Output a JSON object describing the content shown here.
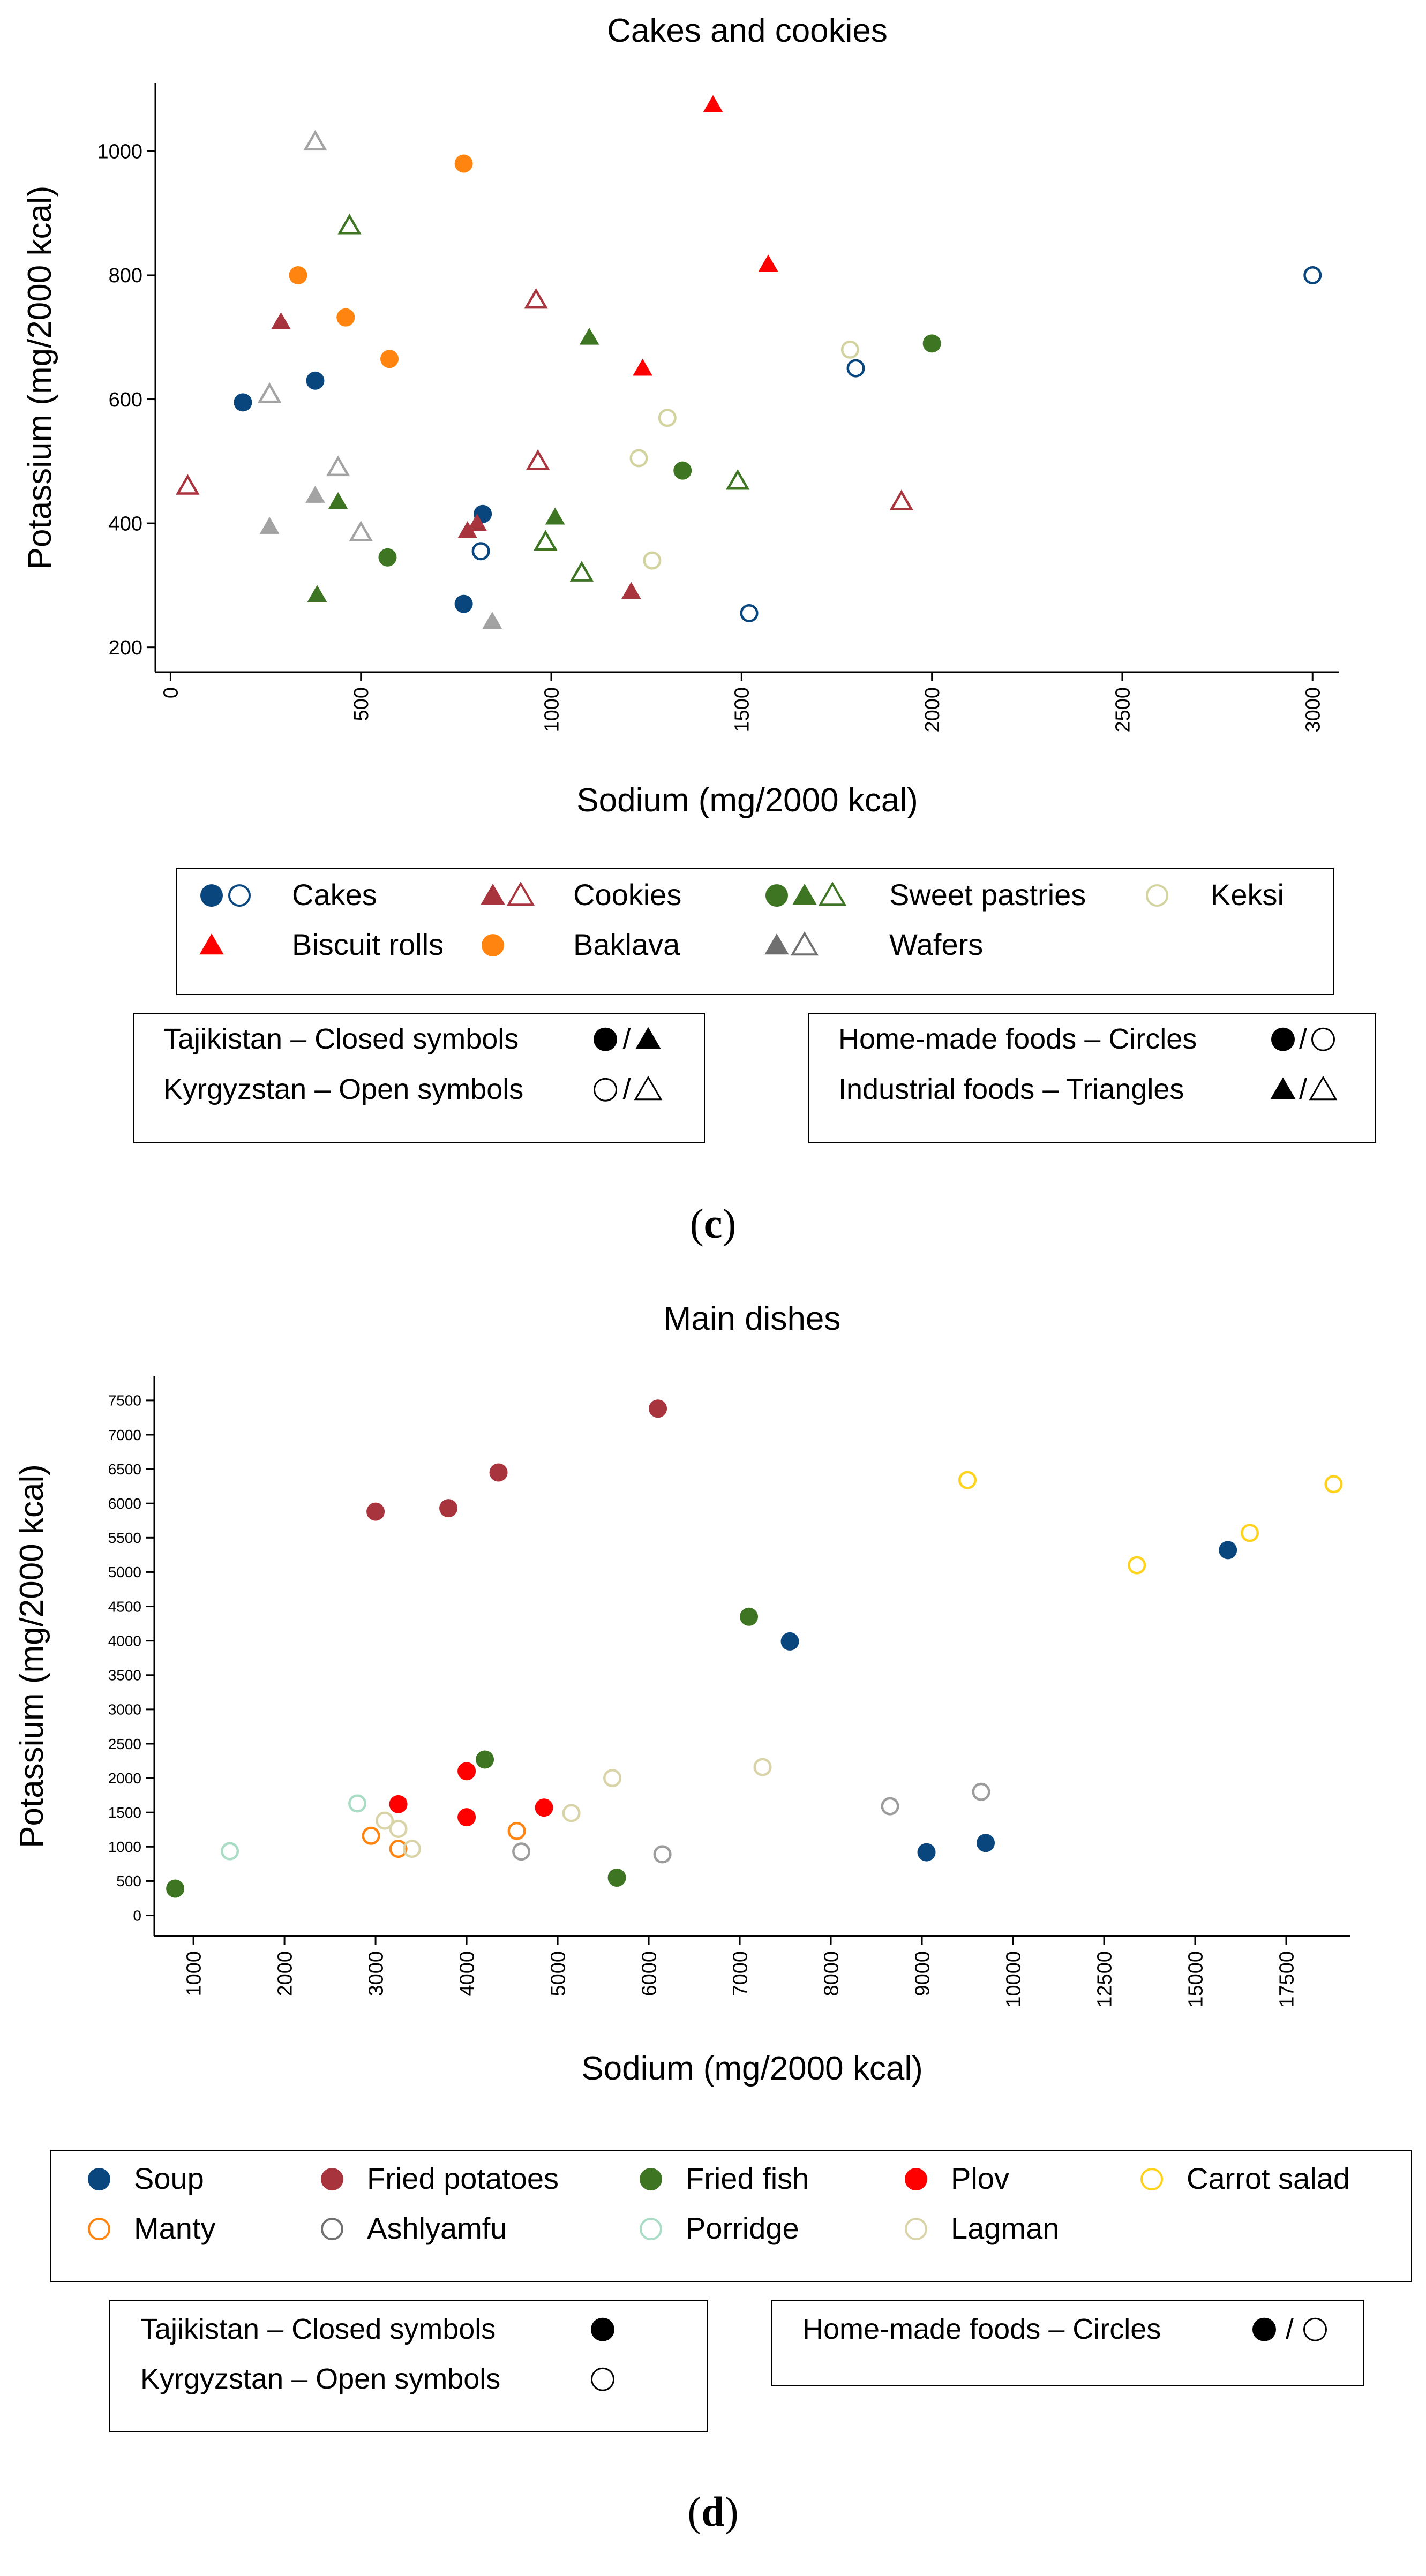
{
  "chart_data": [
    {
      "type": "scatter",
      "title": "Cakes and cookies",
      "xlabel": "Sodium (mg/2000 kcal)",
      "ylabel": "Potassium (mg/2000 kcal)",
      "xlim": [
        -40,
        3070
      ],
      "ylim": [
        160,
        1110
      ],
      "xticks": [
        0,
        500,
        1000,
        1500,
        2000,
        2500,
        3000
      ],
      "yticks": [
        200,
        400,
        600,
        800,
        1000
      ],
      "grid": false,
      "panel_label": "c",
      "series": [
        {
          "name": "Cakes",
          "country": "Tajikistan",
          "symbol": "circle",
          "filled": true,
          "color": "#08467d",
          "points": [
            [
              190,
              595
            ],
            [
              380,
              630
            ],
            [
              770,
              270
            ],
            [
              820,
              415
            ]
          ]
        },
        {
          "name": "Cakes",
          "country": "Kyrgyzstan",
          "symbol": "circle",
          "filled": false,
          "color": "#08467d",
          "points": [
            [
              815,
              355
            ],
            [
              1520,
              255
            ],
            [
              1800,
              650
            ],
            [
              3000,
              800
            ]
          ]
        },
        {
          "name": "Cookies",
          "country": "Tajikistan",
          "symbol": "triangle",
          "filled": true,
          "color": "#a8343e",
          "points": [
            [
              290,
              725
            ],
            [
              780,
              388
            ],
            [
              805,
              400
            ],
            [
              1210,
              290
            ]
          ]
        },
        {
          "name": "Cookies",
          "country": "Kyrgyzstan",
          "symbol": "triangle",
          "filled": false,
          "color": "#a8343e",
          "points": [
            [
              45,
              460
            ],
            [
              960,
              760
            ],
            [
              965,
              500
            ],
            [
              1920,
              435
            ]
          ]
        },
        {
          "name": "Sweet pastries",
          "country": "Tajikistan",
          "symbol": "circle",
          "filled": true,
          "color": "#3e7523",
          "points": [
            [
              570,
              345
            ],
            [
              1345,
              485
            ],
            [
              2000,
              690
            ]
          ]
        },
        {
          "name": "Sweet pastries",
          "country": "Tajikistan",
          "symbol": "triangle",
          "filled": true,
          "color": "#3e7523",
          "points": [
            [
              385,
              285
            ],
            [
              440,
              435
            ],
            [
              1010,
              410
            ],
            [
              1100,
              700
            ]
          ]
        },
        {
          "name": "Sweet pastries",
          "country": "Kyrgyzstan",
          "symbol": "triangle",
          "filled": false,
          "color": "#3e7523",
          "points": [
            [
              470,
              880
            ],
            [
              985,
              370
            ],
            [
              1080,
              320
            ],
            [
              1490,
              468
            ]
          ]
        },
        {
          "name": "Keksi",
          "country": "Kyrgyzstan",
          "symbol": "circle",
          "filled": false,
          "color": "#d3d3a0",
          "points": [
            [
              1230,
              505
            ],
            [
              1265,
              340
            ],
            [
              1305,
              570
            ],
            [
              1785,
              680
            ]
          ]
        },
        {
          "name": "Biscuit rolls",
          "country": "Tajikistan",
          "symbol": "triangle",
          "filled": true,
          "color": "#ff0000",
          "points": [
            [
              1240,
              650
            ],
            [
              1425,
              1075
            ],
            [
              1570,
              818
            ]
          ]
        },
        {
          "name": "Baklava",
          "country": "Tajikistan",
          "symbol": "circle",
          "filled": true,
          "color": "#ff8510",
          "points": [
            [
              335,
              800
            ],
            [
              460,
              732
            ],
            [
              575,
              665
            ],
            [
              770,
              980
            ]
          ]
        },
        {
          "name": "Wafers",
          "country": "Tajikistan",
          "symbol": "triangle",
          "filled": true,
          "color": "#a3a3a3",
          "points": [
            [
              260,
              395
            ],
            [
              380,
              445
            ],
            [
              845,
              242
            ]
          ]
        },
        {
          "name": "Wafers",
          "country": "Kyrgyzstan",
          "symbol": "triangle",
          "filled": false,
          "color": "#a3a3a3",
          "points": [
            [
              260,
              608
            ],
            [
              380,
              1015
            ],
            [
              440,
              490
            ],
            [
              500,
              385
            ]
          ]
        }
      ],
      "legend": {
        "placement": "bottom",
        "items": [
          {
            "label": "Cakes",
            "markers": [
              [
                "circle",
                true,
                "#08467d"
              ],
              [
                "circle",
                false,
                "#08467d"
              ]
            ]
          },
          {
            "label": "Cookies",
            "markers": [
              [
                "triangle",
                true,
                "#a8343e"
              ],
              [
                "triangle",
                false,
                "#a8343e"
              ]
            ]
          },
          {
            "label": "Sweet pastries",
            "markers": [
              [
                "circle",
                true,
                "#3e7523"
              ],
              [
                "triangle",
                true,
                "#3e7523"
              ],
              [
                "triangle",
                false,
                "#3e7523"
              ]
            ]
          },
          {
            "label": "Keksi",
            "markers": [
              [
                "circle",
                false,
                "#d3d3a0"
              ]
            ]
          },
          {
            "label": "Biscuit rolls",
            "markers": [
              [
                "triangle",
                true,
                "#ff0000"
              ]
            ]
          },
          {
            "label": "Baklava",
            "markers": [
              [
                "circle",
                true,
                "#ff8510"
              ]
            ]
          },
          {
            "label": "Wafers",
            "markers": [
              [
                "triangle",
                true,
                "#707070"
              ],
              [
                "triangle",
                false,
                "#707070"
              ]
            ]
          }
        ]
      },
      "keys": [
        {
          "lines": [
            {
              "text": "Tajikistan – Closed symbols",
              "markers": [
                [
                  "circle",
                  true
                ],
                [
                  "triangle",
                  true
                ]
              ]
            },
            {
              "text": "Kyrgyzstan – Open symbols",
              "markers": [
                [
                  "circle",
                  false
                ],
                [
                  "triangle",
                  false
                ]
              ]
            }
          ]
        },
        {
          "lines": [
            {
              "text": "Home-made foods – Circles",
              "markers": [
                [
                  "circle",
                  true
                ],
                [
                  "circle",
                  false
                ]
              ]
            },
            {
              "text": "Industrial foods – Triangles",
              "markers": [
                [
                  "triangle",
                  true
                ],
                [
                  "triangle",
                  false
                ]
              ]
            }
          ]
        }
      ]
    },
    {
      "type": "scatter",
      "title": "Main dishes",
      "xlabel": "Sodium (mg/2000 kcal)",
      "ylabel": "Potassium (mg/2000 kcal)",
      "x_scale": "piecewise",
      "x_scale_note": "ticks every 1000 from 1000 to 10000, then every 2500 from 10000 to 17500",
      "xlim": [
        570,
        19250
      ],
      "ylim": [
        -300,
        7850
      ],
      "xticks": [
        1000,
        2000,
        3000,
        4000,
        5000,
        6000,
        7000,
        8000,
        9000,
        10000,
        12500,
        15000,
        17500
      ],
      "yticks": [
        0,
        500,
        1000,
        1500,
        2000,
        2500,
        3000,
        3500,
        4000,
        4500,
        5000,
        5500,
        6000,
        6500,
        7000,
        7500
      ],
      "grid": false,
      "panel_label": "d",
      "series": [
        {
          "name": "Soup",
          "country": "Tajikistan",
          "symbol": "circle",
          "filled": true,
          "color": "#08467d",
          "points": [
            [
              7550,
              3990
            ],
            [
              9050,
              920
            ],
            [
              9700,
              1055
            ],
            [
              15900,
              5320
            ]
          ]
        },
        {
          "name": "Fried potatoes",
          "country": "Tajikistan",
          "symbol": "circle",
          "filled": true,
          "color": "#a8343e",
          "points": [
            [
              3000,
              5880
            ],
            [
              3800,
              5930
            ],
            [
              4350,
              6450
            ],
            [
              6100,
              7380
            ]
          ]
        },
        {
          "name": "Fried fish",
          "country": "Tajikistan",
          "symbol": "circle",
          "filled": true,
          "color": "#3e7523",
          "points": [
            [
              800,
              390
            ],
            [
              4200,
              2270
            ],
            [
              5650,
              550
            ],
            [
              7100,
              4350
            ]
          ]
        },
        {
          "name": "Plov",
          "country": "Tajikistan",
          "symbol": "circle",
          "filled": true,
          "color": "#ff0000",
          "points": [
            [
              3250,
              1620
            ],
            [
              4000,
              1430
            ],
            [
              4000,
              2100
            ],
            [
              4850,
              1570
            ]
          ]
        },
        {
          "name": "Carrot salad",
          "country": "Kyrgyzstan",
          "symbol": "circle",
          "filled": false,
          "color": "#ffd21c",
          "points": [
            [
              9500,
              6340
            ],
            [
              13400,
              5100
            ],
            [
              16500,
              5570
            ],
            [
              18800,
              6280
            ]
          ]
        },
        {
          "name": "Manty",
          "country": "Kyrgyzstan",
          "symbol": "circle",
          "filled": false,
          "color": "#ff8510",
          "points": [
            [
              2950,
              1160
            ],
            [
              3250,
              970
            ],
            [
              4550,
              1230
            ]
          ]
        },
        {
          "name": "Ashlyamfu",
          "country": "Kyrgyzstan",
          "symbol": "circle",
          "filled": false,
          "color": "#9c9c9c",
          "points": [
            [
              4600,
              930
            ],
            [
              6150,
              890
            ],
            [
              8650,
              1590
            ],
            [
              9650,
              1800
            ]
          ]
        },
        {
          "name": "Porridge",
          "country": "Kyrgyzstan",
          "symbol": "circle",
          "filled": false,
          "color": "#a8dcc5",
          "points": [
            [
              1400,
              935
            ],
            [
              2800,
              1630
            ]
          ]
        },
        {
          "name": "Lagman",
          "country": "Kyrgyzstan",
          "symbol": "circle",
          "filled": false,
          "color": "#d9d4a8",
          "points": [
            [
              3100,
              1380
            ],
            [
              3250,
              1260
            ],
            [
              3400,
              970
            ],
            [
              5150,
              1490
            ],
            [
              5600,
              2000
            ],
            [
              7250,
              2160
            ]
          ]
        }
      ],
      "legend": {
        "placement": "bottom",
        "items": [
          {
            "label": "Soup",
            "markers": [
              [
                "circle",
                true,
                "#08467d"
              ]
            ]
          },
          {
            "label": "Fried potatoes",
            "markers": [
              [
                "circle",
                true,
                "#a8343e"
              ]
            ]
          },
          {
            "label": "Fried fish",
            "markers": [
              [
                "circle",
                true,
                "#3e7523"
              ]
            ]
          },
          {
            "label": "Plov",
            "markers": [
              [
                "circle",
                true,
                "#ff0000"
              ]
            ]
          },
          {
            "label": "Carrot salad",
            "markers": [
              [
                "circle",
                false,
                "#ffd21c"
              ]
            ]
          },
          {
            "label": "Manty",
            "markers": [
              [
                "circle",
                false,
                "#ff8510"
              ]
            ]
          },
          {
            "label": "Ashlyamfu",
            "markers": [
              [
                "circle",
                false,
                "#707070"
              ]
            ]
          },
          {
            "label": "Porridge",
            "markers": [
              [
                "circle",
                false,
                "#a8dcc5"
              ]
            ]
          },
          {
            "label": "Lagman",
            "markers": [
              [
                "circle",
                false,
                "#d9d4a8"
              ]
            ]
          }
        ]
      },
      "keys": [
        {
          "lines": [
            {
              "text": "Tajikistan – Closed symbols",
              "markers": [
                [
                  "circle",
                  true
                ]
              ]
            },
            {
              "text": "Kyrgyzstan – Open symbols",
              "markers": [
                [
                  "circle",
                  false
                ]
              ]
            }
          ]
        },
        {
          "lines": [
            {
              "text": "Home-made foods – Circles",
              "markers": [
                [
                  "circle",
                  true
                ],
                [
                  "circle",
                  false
                ]
              ]
            }
          ]
        }
      ]
    }
  ],
  "panel_labels": {
    "c": "c",
    "d": "d"
  }
}
